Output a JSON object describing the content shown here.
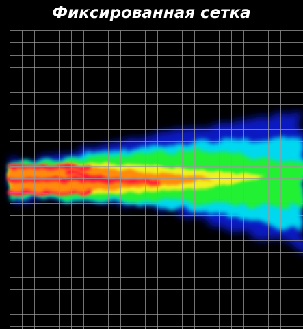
{
  "title": "Фиксированная сетка"
}
